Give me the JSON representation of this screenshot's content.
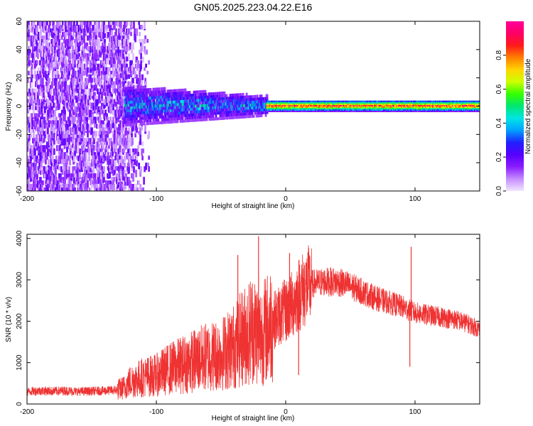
{
  "title": "GN05.2025.223.04.22.E16",
  "colors": {
    "snr_line": "#ef3232",
    "frame": "#000000",
    "background": "#ffffff"
  },
  "chart_data": [
    {
      "type": "heatmap",
      "xlabel": "Height of straight line (km)",
      "ylabel": "Frequency (Hz)",
      "xlim": [
        -200,
        150
      ],
      "ylim": [
        -60,
        60
      ],
      "x_ticks": [
        -200,
        -100,
        0,
        100
      ],
      "y_ticks": [
        -60,
        -40,
        -20,
        0,
        20,
        40,
        60
      ],
      "grid": false,
      "colorbar": {
        "label": "Normalized spectral amplitude",
        "range": [
          0,
          1
        ],
        "ticks": [
          0.0,
          0.2,
          0.4,
          0.6,
          0.8
        ],
        "colormap": "rainbow",
        "stops": [
          "#f2e6ff",
          "#c58cff",
          "#8a1dff",
          "#5500ff",
          "#2020ff",
          "#00a0ff",
          "#00e5e5",
          "#00e673",
          "#33ff00",
          "#ccff00",
          "#ffd500",
          "#ff8000",
          "#ff1a1a",
          "#ff0066",
          "#ff0099"
        ]
      },
      "regions": [
        {
          "x_range": [
            -200,
            -125
          ],
          "freq_range": [
            -60,
            60
          ],
          "amplitude": 0.08,
          "description": "broadband noise"
        },
        {
          "x_range": [
            -125,
            -15
          ],
          "freq_range": [
            -10,
            10
          ],
          "amplitude": 0.3
        },
        {
          "x_range": [
            -15,
            150
          ],
          "freq_range": [
            -3,
            3
          ],
          "amplitude": 0.85
        }
      ]
    },
    {
      "type": "line",
      "xlabel": "Height of straight line (km)",
      "ylabel": "SNR (10 * v/v)",
      "xlim": [
        -200,
        150
      ],
      "ylim": [
        0,
        4100
      ],
      "x_ticks": [
        -200,
        -100,
        0,
        100
      ],
      "y_ticks": [
        0,
        1000,
        2000,
        3000,
        4000
      ],
      "grid": false,
      "series": [
        {
          "x": [
            -200,
            -190,
            -180,
            -170,
            -160,
            -150,
            -140,
            -130,
            -125,
            -120,
            -110,
            -100,
            -90,
            -80,
            -70,
            -60,
            -50,
            -40,
            -30,
            -25,
            -20,
            -15,
            -10,
            -5,
            0,
            5,
            10,
            15,
            20,
            30,
            40,
            50,
            60,
            70,
            80,
            90,
            100,
            110,
            120,
            130,
            140,
            150
          ],
          "values": [
            300,
            320,
            310,
            320,
            300,
            310,
            320,
            340,
            400,
            550,
            650,
            700,
            850,
            950,
            1050,
            1150,
            1200,
            1400,
            1700,
            1850,
            1650,
            1800,
            2000,
            2150,
            2250,
            2400,
            2650,
            2800,
            2900,
            2950,
            2950,
            2850,
            2700,
            2550,
            2450,
            2350,
            2200,
            2150,
            2100,
            2050,
            1950,
            1800
          ]
        }
      ],
      "annotations": [
        {
          "x": -37,
          "value": 3600
        },
        {
          "x": -21,
          "value": 4050
        },
        {
          "x": 3,
          "value": 3650
        },
        {
          "x": 97,
          "value": 3800
        },
        {
          "x": 10,
          "value": 700
        },
        {
          "x": 96,
          "value": 900
        }
      ]
    }
  ]
}
